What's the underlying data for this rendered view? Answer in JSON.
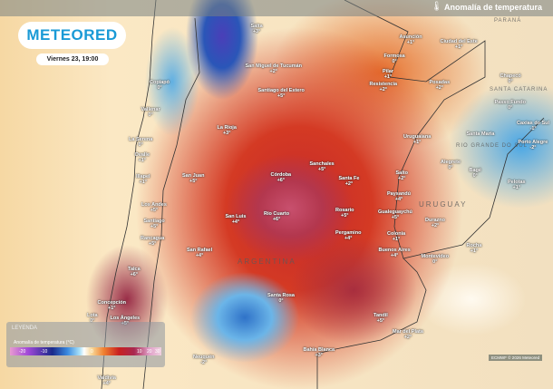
{
  "header": {
    "title": "Anomalía de temperatura",
    "icon": "thermometer-icon"
  },
  "brand": {
    "logo": "METEORED",
    "color": "#1a9ad6"
  },
  "datetime": "Viernes 23, 19:00",
  "regions": [
    "PARANÁ",
    "SANTA CATARINA",
    "RIO GRANDE DO SUL",
    "URUGUAY",
    "ARGENTINA"
  ],
  "cities": [
    {
      "name": "Salta",
      "value": "+3°"
    },
    {
      "name": "San Miguel de Tucumán",
      "value": "+2°"
    },
    {
      "name": "Santiago del Estero",
      "value": "+5°"
    },
    {
      "name": "Copiapó",
      "value": "0°"
    },
    {
      "name": "Vallenar",
      "value": "0°"
    },
    {
      "name": "La Rioja",
      "value": "+3°"
    },
    {
      "name": "La Serena",
      "value": "0°"
    },
    {
      "name": "Ovalle",
      "value": "+1°"
    },
    {
      "name": "Illapel",
      "value": "+1°"
    },
    {
      "name": "San Juan",
      "value": "+5°"
    },
    {
      "name": "Córdoba",
      "value": "+6°"
    },
    {
      "name": "Sanchales",
      "value": "+5°"
    },
    {
      "name": "Santa Fe",
      "value": "+2°"
    },
    {
      "name": "Asunción",
      "value": "+1°"
    },
    {
      "name": "Ciudad del Este",
      "value": "+1°"
    },
    {
      "name": "Formosa",
      "value": "0°"
    },
    {
      "name": "Pilar",
      "value": "+1°"
    },
    {
      "name": "Resistencia",
      "value": "+2°"
    },
    {
      "name": "Posadas",
      "value": "+2°"
    },
    {
      "name": "Chapecó",
      "value": "0°"
    },
    {
      "name": "Passo Fundo",
      "value": "0°"
    },
    {
      "name": "Caxias do Sul",
      "value": "-1°"
    },
    {
      "name": "Porto Alegre",
      "value": "-2°"
    },
    {
      "name": "Santa Maria",
      "value": ""
    },
    {
      "name": "Uruguaiana",
      "value": "+1°"
    },
    {
      "name": "Alegrete",
      "value": "0°"
    },
    {
      "name": "Bagé",
      "value": "0°"
    },
    {
      "name": "Pelotas",
      "value": "+1°"
    },
    {
      "name": "Salto",
      "value": "+2°"
    },
    {
      "name": "Paysandú",
      "value": "+4°"
    },
    {
      "name": "Rosario",
      "value": "+5°"
    },
    {
      "name": "Gualeguaychú",
      "value": "+5°"
    },
    {
      "name": "Durazno",
      "value": "+2°"
    },
    {
      "name": "Colonia",
      "value": "+1°"
    },
    {
      "name": "Buenos Aires",
      "value": "+4°"
    },
    {
      "name": "Montevideo",
      "value": "0°"
    },
    {
      "name": "Rocha",
      "value": "+1°"
    },
    {
      "name": "Pergamino",
      "value": "+4°"
    },
    {
      "name": "Río Cuarto",
      "value": "+6°"
    },
    {
      "name": "San Luis",
      "value": "+4°"
    },
    {
      "name": "Los Andes",
      "value": "+5°"
    },
    {
      "name": "Santiago",
      "value": "+5°"
    },
    {
      "name": "Rancagua",
      "value": "+5°"
    },
    {
      "name": "San Rafael",
      "value": "+4°"
    },
    {
      "name": "Talca",
      "value": "+6°"
    },
    {
      "name": "Santa Rosa",
      "value": "0°"
    },
    {
      "name": "Concepción",
      "value": "+1°"
    },
    {
      "name": "Los Ángeles",
      "value": "+5°"
    },
    {
      "name": "Lota",
      "value": "0°"
    },
    {
      "name": "Neuquén",
      "value": "-2°"
    },
    {
      "name": "Tandil",
      "value": "+5°"
    },
    {
      "name": "Mar del Plata",
      "value": "+2°"
    },
    {
      "name": "Bahía Blanca",
      "value": "+3°"
    },
    {
      "name": "Valdivia",
      "value": "+4°"
    }
  ],
  "legend": {
    "title": "LEYENDA",
    "subtitle": "Anomalía de temperatura (°C)",
    "ticks": [
      "-20",
      "-10",
      "0",
      "10",
      "20",
      "30"
    ]
  },
  "credit": "ECMWF © 2026 Meteored"
}
